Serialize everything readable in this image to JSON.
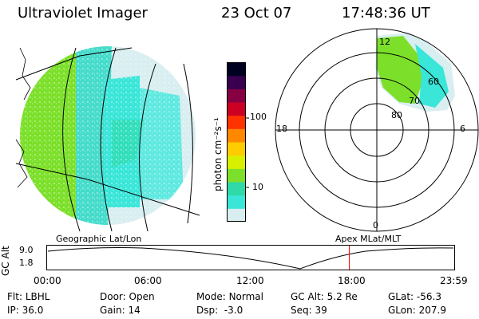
{
  "header": {
    "instrument": "Ultraviolet Imager",
    "date": "23 Oct 07",
    "time": "17:48:36 UT"
  },
  "colorbar": {
    "unit_label": "photon cm⁻²s⁻¹",
    "ticks": [
      "100",
      "10"
    ],
    "colors": [
      "#d8eef0",
      "#39e6d8",
      "#2fd9a8",
      "#7ce02a",
      "#d8f000",
      "#ffcc00",
      "#ff8800",
      "#ff3300",
      "#cc0022",
      "#880044",
      "#3a0050",
      "#000020"
    ]
  },
  "map_labels": {
    "left": "Geographic Lat/Lon",
    "right": "Apex  MLat/MLT"
  },
  "polar_plot": {
    "mlt_labels": {
      "top": "12",
      "bottom": "0",
      "left": "18",
      "right": "6"
    },
    "lat_labels": [
      "60",
      "70",
      "80"
    ]
  },
  "timeline": {
    "ylabel": "GC Alt",
    "y_ticks": [
      "9.0",
      "1.8"
    ],
    "x_ticks": [
      "00:00",
      "06:00",
      "12:00",
      "18:00",
      "23:59"
    ],
    "current_time_fraction": 0.7422,
    "marker_color": "#ff0000"
  },
  "status": {
    "row1": [
      {
        "label": "Flt:",
        "value": "LBHL"
      },
      {
        "label": "Door:",
        "value": "Open"
      },
      {
        "label": "Mode:",
        "value": "Normal"
      },
      {
        "label": "GC Alt:",
        "value": "5.2 Re"
      },
      {
        "label": "GLat:",
        "value": "-56.3"
      }
    ],
    "row2": [
      {
        "label": "IP:",
        "value": "36.0"
      },
      {
        "label": "Gain:",
        "value": "14"
      },
      {
        "label": "Dsp:",
        "value": "-3.0"
      },
      {
        "label": "Seq:",
        "value": "39"
      },
      {
        "label": "GLon:",
        "value": "207.9"
      }
    ]
  }
}
